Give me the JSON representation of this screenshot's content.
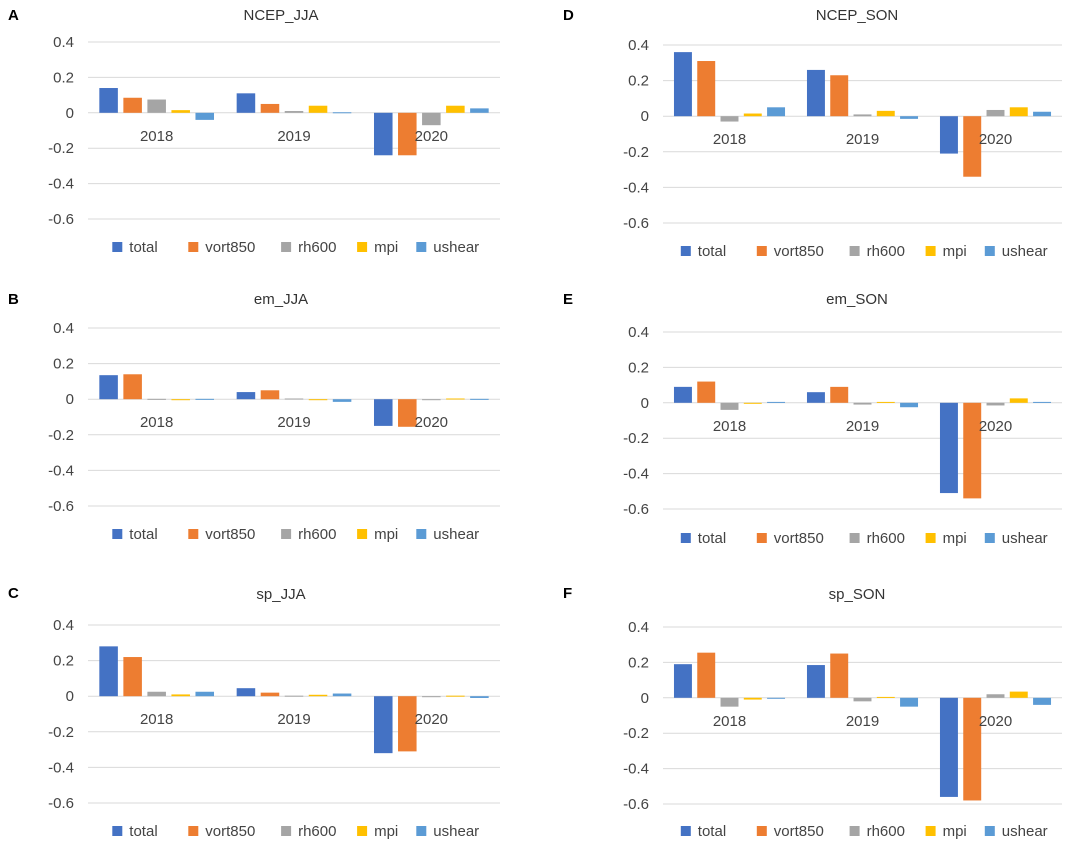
{
  "chart_data": [
    {
      "panel": "A",
      "type": "bar",
      "title": "NCEP_JJA",
      "categories": [
        "2018",
        "2019",
        "2020"
      ],
      "ylim": [
        -0.6,
        0.4
      ],
      "yticks": [
        "0.4",
        "0.2",
        "0",
        "-0.2",
        "-0.4",
        "-0.6"
      ],
      "grid": true,
      "legend": "bottom",
      "series": [
        {
          "name": "total",
          "color": "#4472c4",
          "values": [
            0.14,
            0.11,
            -0.24
          ]
        },
        {
          "name": "vort850",
          "color": "#ed7d31",
          "values": [
            0.085,
            0.05,
            -0.24
          ]
        },
        {
          "name": "rh600",
          "color": "#a5a5a5",
          "values": [
            0.075,
            0.01,
            -0.07
          ]
        },
        {
          "name": "mpi",
          "color": "#ffc000",
          "values": [
            0.015,
            0.04,
            0.04
          ]
        },
        {
          "name": "ushear",
          "color": "#5b9bd5",
          "values": [
            -0.04,
            0.003,
            0.025
          ]
        }
      ]
    },
    {
      "panel": "B",
      "type": "bar",
      "title": "em_JJA",
      "categories": [
        "2018",
        "2019",
        "2020"
      ],
      "ylim": [
        -0.6,
        0.4
      ],
      "yticks": [
        "0.4",
        "0.2",
        "0",
        "-0.2",
        "-0.4",
        "-0.6"
      ],
      "grid": true,
      "legend": "bottom",
      "series": [
        {
          "name": "total",
          "color": "#4472c4",
          "values": [
            0.135,
            0.04,
            -0.15
          ]
        },
        {
          "name": "vort850",
          "color": "#ed7d31",
          "values": [
            0.14,
            0.05,
            -0.155
          ]
        },
        {
          "name": "rh600",
          "color": "#a5a5a5",
          "values": [
            0.002,
            0.004,
            -0.005
          ]
        },
        {
          "name": "mpi",
          "color": "#ffc000",
          "values": [
            0.0,
            0.0,
            0.004
          ]
        },
        {
          "name": "ushear",
          "color": "#5b9bd5",
          "values": [
            0.002,
            -0.015,
            0.002
          ]
        }
      ]
    },
    {
      "panel": "C",
      "type": "bar",
      "title": "sp_JJA",
      "categories": [
        "2018",
        "2019",
        "2020"
      ],
      "ylim": [
        -0.6,
        0.4
      ],
      "yticks": [
        "0.4",
        "0.2",
        "0",
        "-0.2",
        "-0.4",
        "-0.6"
      ],
      "grid": true,
      "legend": "bottom",
      "series": [
        {
          "name": "total",
          "color": "#4472c4",
          "values": [
            0.28,
            0.045,
            -0.32
          ]
        },
        {
          "name": "vort850",
          "color": "#ed7d31",
          "values": [
            0.22,
            0.02,
            -0.31
          ]
        },
        {
          "name": "rh600",
          "color": "#a5a5a5",
          "values": [
            0.025,
            0.003,
            -0.005
          ]
        },
        {
          "name": "mpi",
          "color": "#ffc000",
          "values": [
            0.01,
            0.008,
            0.003
          ]
        },
        {
          "name": "ushear",
          "color": "#5b9bd5",
          "values": [
            0.025,
            0.015,
            -0.01
          ]
        }
      ]
    },
    {
      "panel": "D",
      "type": "bar",
      "title": "NCEP_SON",
      "categories": [
        "2018",
        "2019",
        "2020"
      ],
      "ylim": [
        -0.6,
        0.4
      ],
      "yticks": [
        "0.4",
        "0.2",
        "0",
        "-0.2",
        "-0.4",
        "-0.6"
      ],
      "grid": true,
      "legend": "bottom",
      "series": [
        {
          "name": "total",
          "color": "#4472c4",
          "values": [
            0.36,
            0.26,
            -0.21
          ]
        },
        {
          "name": "vort850",
          "color": "#ed7d31",
          "values": [
            0.31,
            0.23,
            -0.34
          ]
        },
        {
          "name": "rh600",
          "color": "#a5a5a5",
          "values": [
            -0.03,
            0.01,
            0.035
          ]
        },
        {
          "name": "mpi",
          "color": "#ffc000",
          "values": [
            0.015,
            0.03,
            0.05
          ]
        },
        {
          "name": "ushear",
          "color": "#5b9bd5",
          "values": [
            0.05,
            -0.015,
            0.025
          ]
        }
      ]
    },
    {
      "panel": "E",
      "type": "bar",
      "title": "em_SON",
      "categories": [
        "2018",
        "2019",
        "2020"
      ],
      "ylim": [
        -0.6,
        0.4
      ],
      "yticks": [
        "0.4",
        "0.2",
        "0",
        "-0.2",
        "-0.4",
        "-0.6"
      ],
      "grid": true,
      "legend": "bottom",
      "series": [
        {
          "name": "total",
          "color": "#4472c4",
          "values": [
            0.09,
            0.06,
            -0.51
          ]
        },
        {
          "name": "vort850",
          "color": "#ed7d31",
          "values": [
            0.12,
            0.09,
            -0.54
          ]
        },
        {
          "name": "rh600",
          "color": "#a5a5a5",
          "values": [
            -0.04,
            -0.01,
            -0.015
          ]
        },
        {
          "name": "mpi",
          "color": "#ffc000",
          "values": [
            0.0,
            0.005,
            0.025
          ]
        },
        {
          "name": "ushear",
          "color": "#5b9bd5",
          "values": [
            0.005,
            -0.025,
            0.005
          ]
        }
      ]
    },
    {
      "panel": "F",
      "type": "bar",
      "title": "sp_SON",
      "categories": [
        "2018",
        "2019",
        "2020"
      ],
      "ylim": [
        -0.6,
        0.4
      ],
      "yticks": [
        "0.4",
        "0.2",
        "0",
        "-0.2",
        "-0.4",
        "-0.6"
      ],
      "grid": true,
      "legend": "bottom",
      "series": [
        {
          "name": "total",
          "color": "#4472c4",
          "values": [
            0.19,
            0.185,
            -0.56
          ]
        },
        {
          "name": "vort850",
          "color": "#ed7d31",
          "values": [
            0.255,
            0.25,
            -0.58
          ]
        },
        {
          "name": "rh600",
          "color": "#a5a5a5",
          "values": [
            -0.05,
            -0.02,
            0.02
          ]
        },
        {
          "name": "mpi",
          "color": "#ffc000",
          "values": [
            -0.01,
            0.005,
            0.035
          ]
        },
        {
          "name": "ushear",
          "color": "#5b9bd5",
          "values": [
            0.0,
            -0.05,
            -0.04
          ]
        }
      ]
    }
  ]
}
